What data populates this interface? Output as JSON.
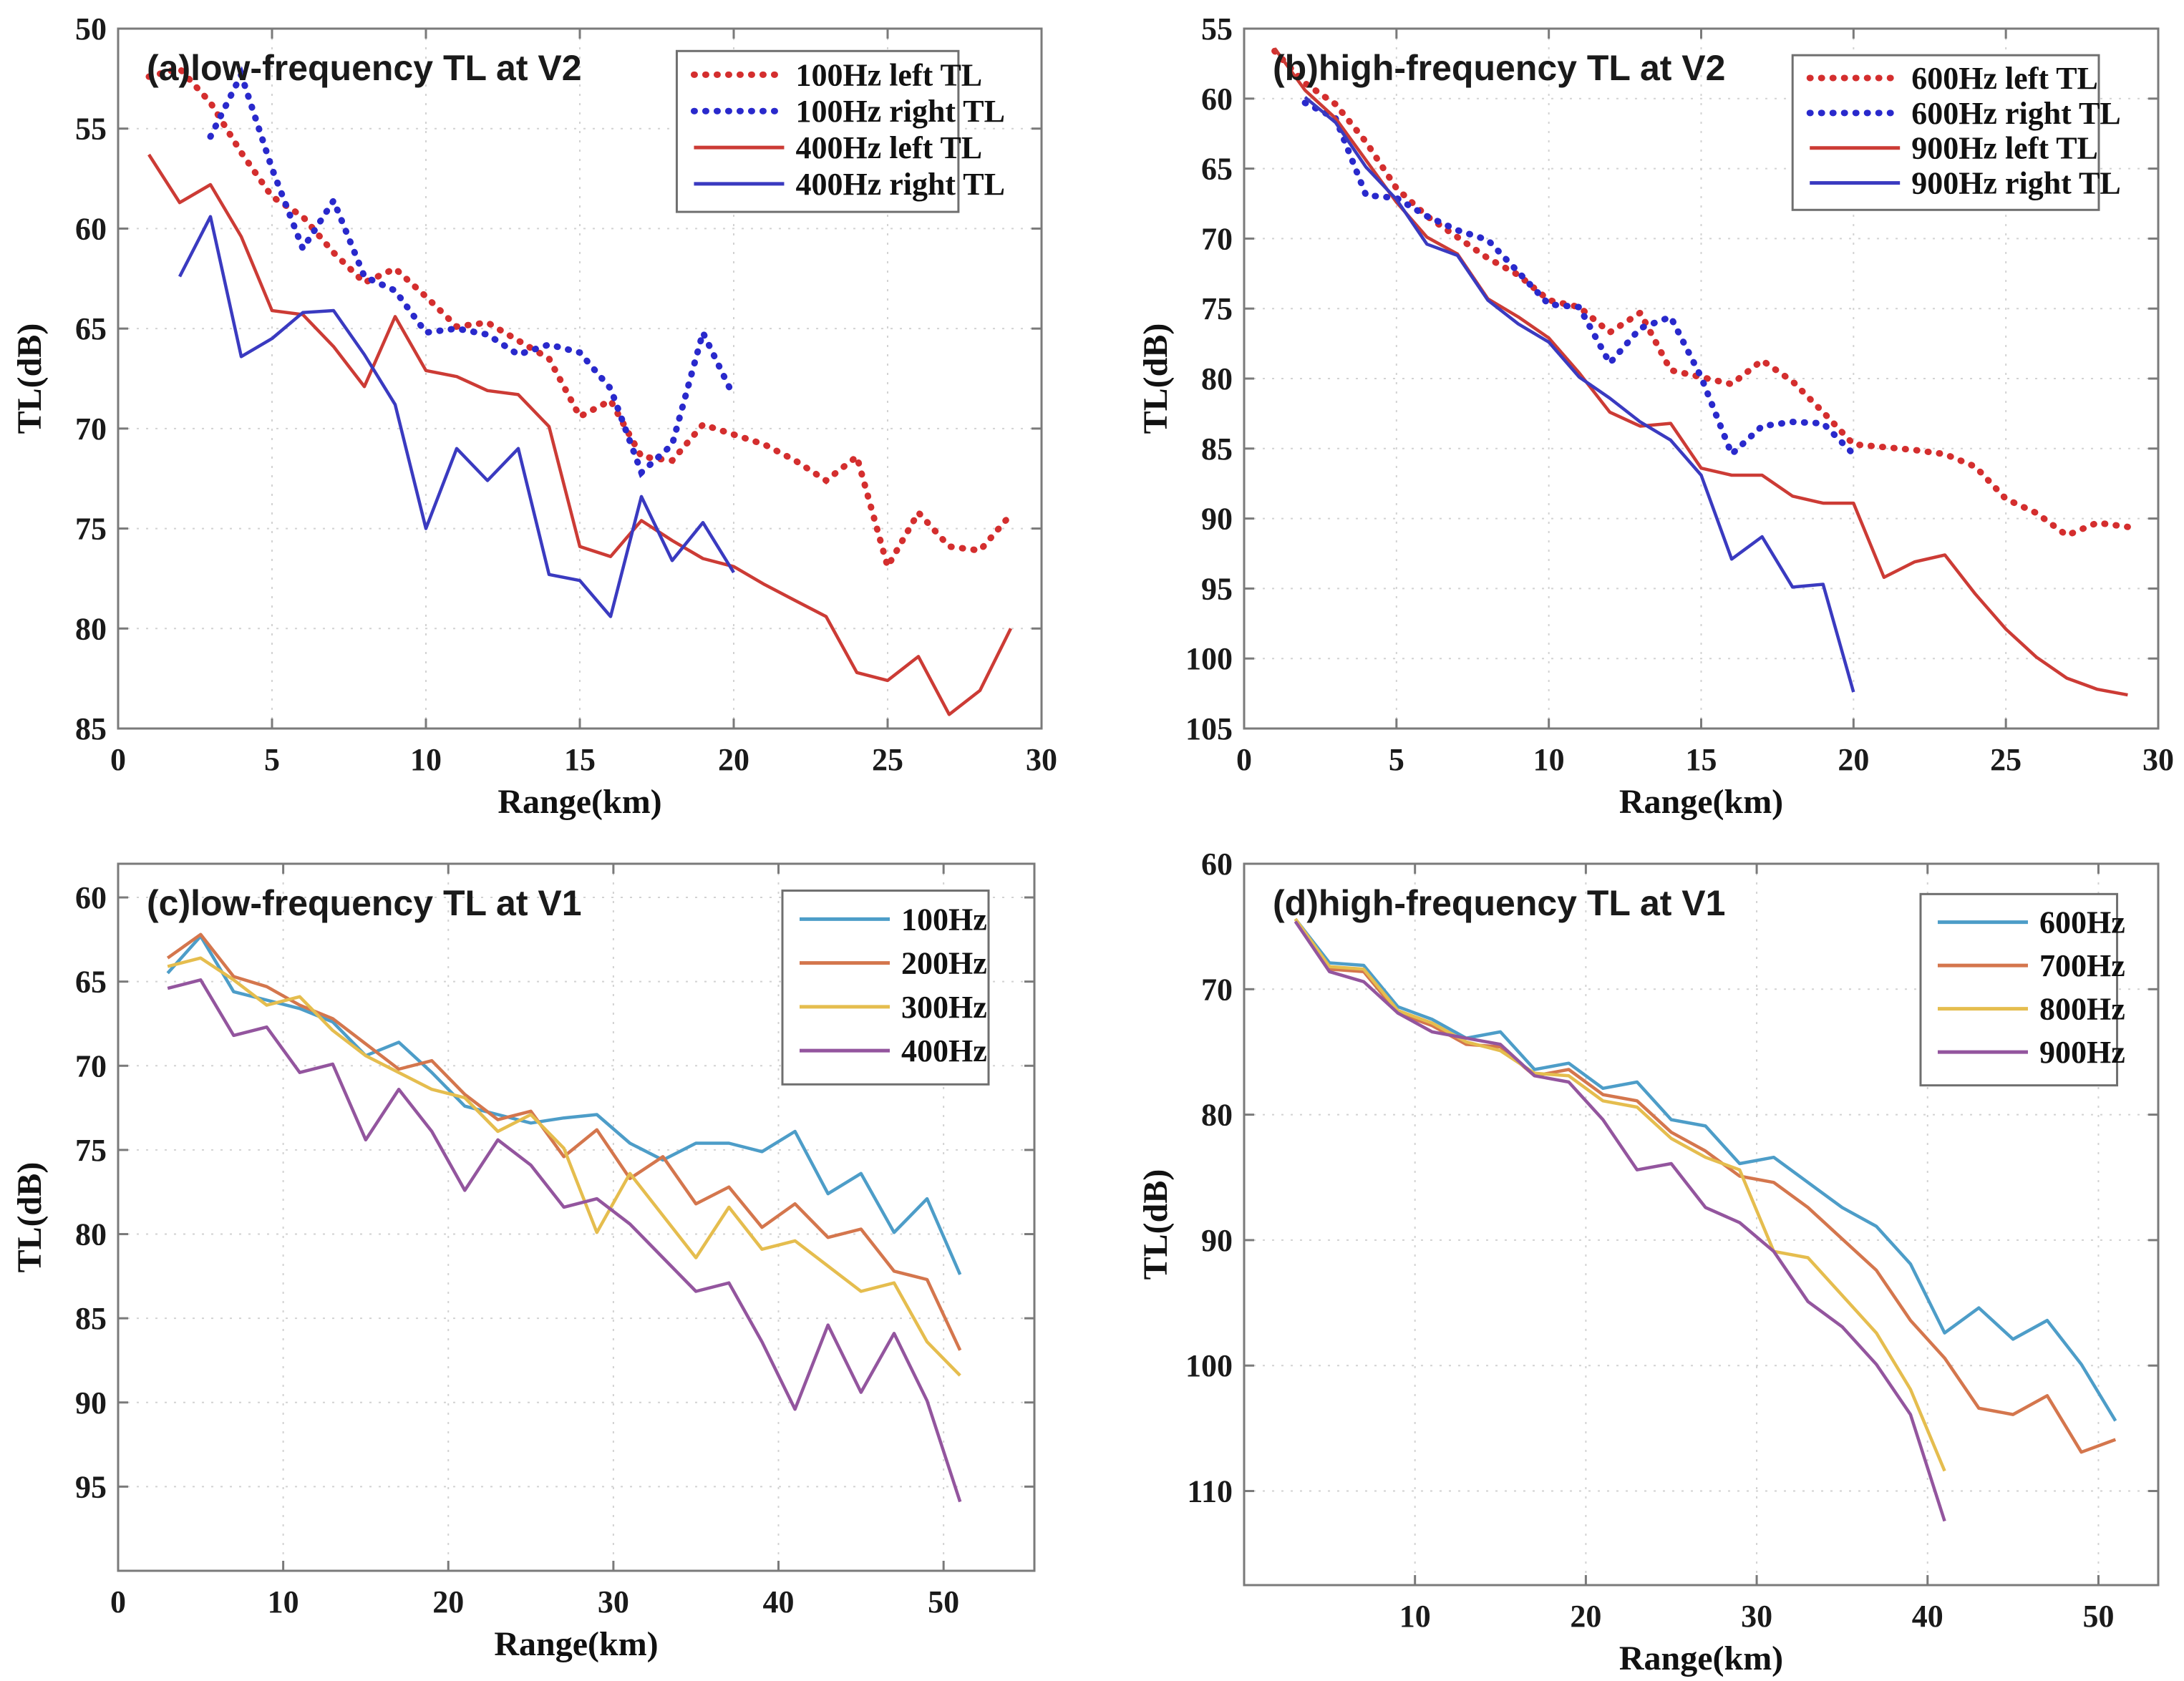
{
  "figure": {
    "background": "#ffffff",
    "grid_color": "#d2d2d2",
    "axis_color": "#7a7a7a",
    "tick_label_color": "#1a1a1a"
  },
  "chart_data": [
    {
      "id": "a",
      "type": "line",
      "title": "(a)low-frequency TL at V2",
      "xlabel": "Range(km)",
      "ylabel": "TL(dB)",
      "xlim": [
        0,
        30
      ],
      "ylim": [
        50,
        85
      ],
      "y_reversed": true,
      "grid": true,
      "xticks": [
        0,
        5,
        10,
        15,
        20,
        25,
        30
      ],
      "yticks": [
        50,
        55,
        60,
        65,
        70,
        75,
        80,
        85
      ],
      "legend": {
        "x": 0.605,
        "y": 0.032,
        "w": 0.305,
        "row_h": 0.052
      },
      "series": [
        {
          "name": "100Hz left TL",
          "color": "#d42e2e",
          "style": "dotted",
          "x": [
            1,
            2,
            3,
            4,
            5,
            6,
            7,
            8,
            9,
            10,
            11,
            12,
            13,
            14,
            15,
            16,
            17,
            18,
            19,
            20,
            21,
            22,
            23,
            24,
            25,
            26,
            27,
            28,
            29
          ],
          "y": [
            52.4,
            52.0,
            53.7,
            56.2,
            58.4,
            59.4,
            61.2,
            62.7,
            62.0,
            63.4,
            64.9,
            64.7,
            65.6,
            66.5,
            69.4,
            68.6,
            71.4,
            71.6,
            69.8,
            70.3,
            70.8,
            71.6,
            72.6,
            71.4,
            76.9,
            74.2,
            75.9,
            76.1,
            74.3
          ]
        },
        {
          "name": "100Hz right TL",
          "color": "#2929cc",
          "style": "dotted",
          "x": [
            3,
            4,
            5,
            6,
            7,
            8,
            9,
            10,
            11,
            12,
            13,
            14,
            15,
            16,
            17,
            18,
            19,
            20
          ],
          "y": [
            55.4,
            52.3,
            57.0,
            61.0,
            58.6,
            62.4,
            63.1,
            65.2,
            65.0,
            65.3,
            66.3,
            65.8,
            66.2,
            68.0,
            72.2,
            70.8,
            65.2,
            68.4
          ]
        },
        {
          "name": "400Hz left TL",
          "color": "#cc3b35",
          "style": "solid",
          "x": [
            1,
            2,
            3,
            4,
            5,
            6,
            7,
            8,
            9,
            10,
            11,
            12,
            13,
            14,
            15,
            16,
            17,
            18,
            19,
            20,
            21,
            22,
            23,
            24,
            25,
            26,
            27,
            28,
            29
          ],
          "y": [
            56.3,
            58.7,
            57.8,
            60.4,
            64.1,
            64.3,
            65.9,
            67.9,
            64.4,
            67.1,
            67.4,
            68.1,
            68.3,
            69.9,
            75.9,
            76.4,
            74.6,
            75.6,
            76.5,
            76.9,
            77.8,
            78.6,
            79.4,
            82.2,
            82.6,
            81.4,
            84.3,
            83.1,
            80.0
          ]
        },
        {
          "name": "400Hz right TL",
          "color": "#3a3ac0",
          "style": "solid",
          "x": [
            2,
            3,
            4,
            5,
            6,
            7,
            8,
            9,
            10,
            11,
            12,
            13,
            14,
            15,
            16,
            17,
            18,
            19,
            20
          ],
          "y": [
            62.4,
            59.4,
            66.4,
            65.5,
            64.2,
            64.1,
            66.3,
            68.8,
            75.0,
            71.0,
            72.6,
            71.0,
            77.3,
            77.6,
            79.4,
            73.4,
            76.6,
            74.7,
            77.2
          ]
        }
      ]
    },
    {
      "id": "b",
      "type": "line",
      "title": "(b)high-frequency TL at V2",
      "xlabel": "Range(km)",
      "ylabel": "TL(dB)",
      "xlim": [
        0,
        30
      ],
      "ylim": [
        55,
        105
      ],
      "y_reversed": true,
      "grid": true,
      "xticks": [
        0,
        5,
        10,
        15,
        20,
        25,
        30
      ],
      "yticks": [
        55,
        60,
        65,
        70,
        75,
        80,
        85,
        90,
        95,
        100,
        105
      ],
      "legend": {
        "x": 0.6,
        "y": 0.038,
        "w": 0.335,
        "row_h": 0.05
      },
      "series": [
        {
          "name": "600Hz left TL",
          "color": "#d42e2e",
          "style": "dotted",
          "x": [
            1,
            2,
            3,
            4,
            5,
            6,
            7,
            8,
            9,
            10,
            11,
            12,
            13,
            14,
            15,
            16,
            17,
            18,
            19,
            20,
            21,
            22,
            23,
            24,
            25,
            26,
            27,
            28,
            29
          ],
          "y": [
            56.6,
            58.9,
            60.4,
            63.1,
            66.4,
            68.4,
            69.9,
            71.4,
            72.6,
            74.4,
            74.9,
            76.7,
            75.3,
            79.4,
            79.9,
            80.4,
            78.7,
            80.2,
            82.4,
            84.7,
            84.9,
            85.1,
            85.4,
            86.3,
            88.6,
            89.6,
            91.2,
            90.3,
            90.6
          ]
        },
        {
          "name": "600Hz right TL",
          "color": "#2929cc",
          "style": "dotted",
          "x": [
            2,
            3,
            4,
            5,
            6,
            7,
            8,
            9,
            10,
            11,
            12,
            13,
            14,
            15,
            16,
            17,
            18,
            19,
            20
          ],
          "y": [
            60.3,
            61.4,
            66.9,
            67.1,
            68.4,
            69.4,
            70.1,
            72.4,
            74.7,
            74.9,
            78.9,
            76.4,
            75.6,
            79.9,
            85.4,
            83.4,
            83.1,
            83.2,
            85.4
          ]
        },
        {
          "name": "900Hz left TL",
          "color": "#cc3b35",
          "style": "solid",
          "x": [
            1,
            2,
            3,
            4,
            5,
            6,
            7,
            8,
            9,
            10,
            11,
            12,
            13,
            14,
            15,
            16,
            17,
            18,
            19,
            20,
            21,
            22,
            23,
            24,
            25,
            26,
            27,
            28,
            29
          ],
          "y": [
            56.4,
            59.4,
            61.4,
            64.4,
            67.4,
            69.9,
            71.1,
            74.3,
            75.6,
            77.1,
            79.6,
            82.4,
            83.4,
            83.2,
            86.4,
            86.9,
            86.9,
            88.4,
            88.9,
            88.9,
            94.2,
            93.1,
            92.6,
            95.4,
            97.9,
            99.9,
            101.4,
            102.2,
            102.6
          ]
        },
        {
          "name": "900Hz right TL",
          "color": "#3a3ac0",
          "style": "solid",
          "x": [
            2,
            3,
            4,
            5,
            6,
            7,
            8,
            9,
            10,
            11,
            12,
            13,
            14,
            15,
            16,
            17,
            18,
            19,
            20
          ],
          "y": [
            59.9,
            61.7,
            64.9,
            67.2,
            70.4,
            71.2,
            74.4,
            76.1,
            77.4,
            79.9,
            81.4,
            83.1,
            84.4,
            86.9,
            92.9,
            91.3,
            94.9,
            94.7,
            102.4
          ]
        }
      ]
    },
    {
      "id": "c",
      "type": "line",
      "title": "(c)low-frequency TL at V1",
      "xlabel": "Range(km)",
      "ylabel": "TL(dB)",
      "xlim": [
        0,
        55.5
      ],
      "ylim": [
        58,
        100
      ],
      "y_reversed": true,
      "grid": true,
      "xticks": [
        0,
        10,
        20,
        30,
        40,
        50
      ],
      "yticks": [
        60,
        65,
        70,
        75,
        80,
        85,
        90,
        95
      ],
      "legend": {
        "x": 0.725,
        "y": 0.038,
        "w": 0.225,
        "row_h": 0.062
      },
      "series": [
        {
          "name": "100Hz",
          "color": "#4d9dc8",
          "style": "solid",
          "x": [
            3,
            5,
            7,
            9,
            11,
            13,
            15,
            17,
            19,
            21,
            23,
            25,
            27,
            29,
            31,
            33,
            35,
            37,
            39,
            41,
            43,
            45,
            47,
            49,
            51
          ],
          "y": [
            64.5,
            62.3,
            65.6,
            66.1,
            66.6,
            67.4,
            69.4,
            68.6,
            70.4,
            72.4,
            72.9,
            73.4,
            73.1,
            72.9,
            74.6,
            75.6,
            74.6,
            74.6,
            75.1,
            73.9,
            77.6,
            76.4,
            79.9,
            77.9,
            82.4
          ]
        },
        {
          "name": "200Hz",
          "color": "#d4764d",
          "style": "solid",
          "x": [
            3,
            5,
            7,
            9,
            11,
            13,
            15,
            17,
            19,
            21,
            23,
            25,
            27,
            29,
            31,
            33,
            35,
            37,
            39,
            41,
            43,
            45,
            47,
            49,
            51
          ],
          "y": [
            63.6,
            62.2,
            64.7,
            65.3,
            66.4,
            67.2,
            68.7,
            70.2,
            69.7,
            71.7,
            73.2,
            72.7,
            75.4,
            73.8,
            76.7,
            75.4,
            78.2,
            77.2,
            79.6,
            78.2,
            80.2,
            79.7,
            82.2,
            82.7,
            86.9
          ]
        },
        {
          "name": "300Hz",
          "color": "#e5bd4e",
          "style": "solid",
          "x": [
            3,
            5,
            7,
            9,
            11,
            13,
            15,
            17,
            19,
            21,
            23,
            25,
            27,
            29,
            31,
            33,
            35,
            37,
            39,
            41,
            43,
            45,
            47,
            49,
            51
          ],
          "y": [
            64.1,
            63.6,
            64.9,
            66.4,
            65.9,
            67.9,
            69.4,
            70.4,
            71.4,
            71.9,
            73.9,
            72.9,
            74.9,
            79.9,
            76.4,
            78.9,
            81.4,
            78.4,
            80.9,
            80.4,
            81.9,
            83.4,
            82.9,
            86.4,
            88.4
          ]
        },
        {
          "name": "400Hz",
          "color": "#93559e",
          "style": "solid",
          "x": [
            3,
            5,
            7,
            9,
            11,
            13,
            15,
            17,
            19,
            21,
            23,
            25,
            27,
            29,
            31,
            33,
            35,
            37,
            39,
            41,
            43,
            45,
            47,
            49,
            51
          ],
          "y": [
            65.4,
            64.9,
            68.2,
            67.7,
            70.4,
            69.9,
            74.4,
            71.4,
            73.9,
            77.4,
            74.4,
            75.9,
            78.4,
            77.9,
            79.4,
            81.4,
            83.4,
            82.9,
            86.4,
            90.4,
            85.4,
            89.4,
            85.9,
            89.9,
            95.9
          ]
        }
      ]
    },
    {
      "id": "d",
      "type": "line",
      "title": "(d)high-frequency TL at V1",
      "xlabel": "Range(km)",
      "ylabel": "TL(dB)",
      "xlim": [
        0,
        53.5
      ],
      "ylim": [
        60,
        117.5
      ],
      "y_reversed": true,
      "grid": true,
      "xticks": [
        10,
        20,
        30,
        40,
        50
      ],
      "yticks": [
        60,
        70,
        80,
        90,
        100,
        110
      ],
      "legend": {
        "x": 0.74,
        "y": 0.042,
        "w": 0.215,
        "row_h": 0.06
      },
      "series": [
        {
          "name": "600Hz",
          "color": "#4d9dc8",
          "style": "solid",
          "x": [
            3,
            5,
            7,
            9,
            11,
            13,
            15,
            17,
            19,
            21,
            23,
            25,
            27,
            29,
            31,
            33,
            35,
            37,
            39,
            41,
            43,
            45,
            47,
            49,
            51
          ],
          "y": [
            64.4,
            67.9,
            68.1,
            71.4,
            72.4,
            73.9,
            73.4,
            76.4,
            75.9,
            77.9,
            77.4,
            80.4,
            80.9,
            83.9,
            83.4,
            85.4,
            87.4,
            88.9,
            91.9,
            97.4,
            95.4,
            97.9,
            96.4,
            99.9,
            104.4
          ]
        },
        {
          "name": "700Hz",
          "color": "#d4764d",
          "style": "solid",
          "x": [
            3,
            5,
            7,
            9,
            11,
            13,
            15,
            17,
            19,
            21,
            23,
            25,
            27,
            29,
            31,
            33,
            35,
            37,
            39,
            41,
            43,
            45,
            47,
            49,
            51
          ],
          "y": [
            64.4,
            68.4,
            68.6,
            71.9,
            72.9,
            74.4,
            74.6,
            76.9,
            76.4,
            78.4,
            78.9,
            81.4,
            82.9,
            84.9,
            85.4,
            87.4,
            89.9,
            92.4,
            96.4,
            99.4,
            103.4,
            103.9,
            102.4,
            106.9,
            105.9
          ]
        },
        {
          "name": "800Hz",
          "color": "#e5bd4e",
          "style": "solid",
          "x": [
            3,
            5,
            7,
            9,
            11,
            13,
            15,
            17,
            19,
            21,
            23,
            25,
            27,
            29,
            31,
            33,
            35,
            37,
            39,
            41
          ],
          "y": [
            64.4,
            68.2,
            68.4,
            71.7,
            72.7,
            74.2,
            74.9,
            76.7,
            76.9,
            78.9,
            79.4,
            81.9,
            83.4,
            84.4,
            90.9,
            91.4,
            94.4,
            97.4,
            101.9,
            108.4
          ]
        },
        {
          "name": "900Hz",
          "color": "#93559e",
          "style": "solid",
          "x": [
            3,
            5,
            7,
            9,
            11,
            13,
            15,
            17,
            19,
            21,
            23,
            25,
            27,
            29,
            31,
            33,
            35,
            37,
            39,
            41
          ],
          "y": [
            64.6,
            68.6,
            69.4,
            71.9,
            73.4,
            73.9,
            74.4,
            76.9,
            77.4,
            80.4,
            84.4,
            83.9,
            87.4,
            88.6,
            90.9,
            94.9,
            96.9,
            99.9,
            103.9,
            112.4
          ]
        }
      ]
    }
  ]
}
